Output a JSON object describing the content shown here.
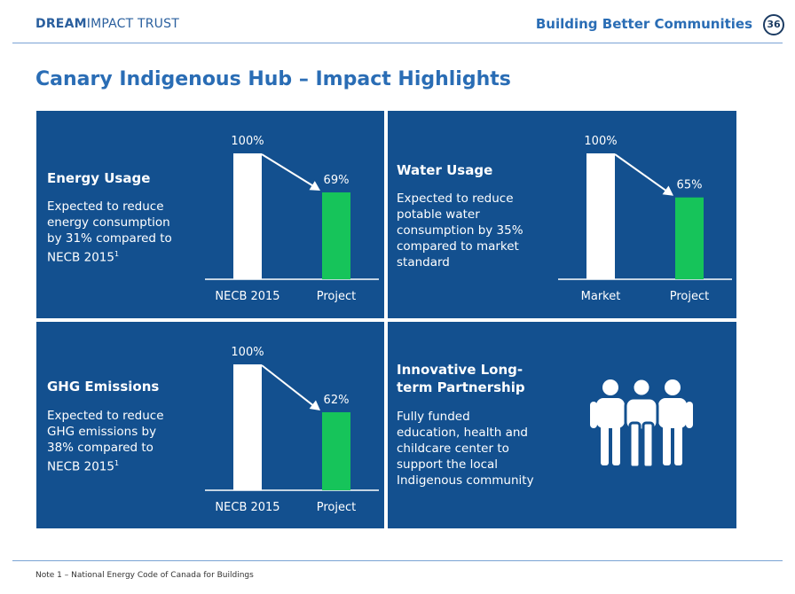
{
  "header": {
    "logo_bold": "DREAM",
    "logo_light": "IMPACT TRUST",
    "section": "Building Better Communities",
    "page_number": "36"
  },
  "title": "Canary Indigenous Hub – Impact Highlights",
  "panels": {
    "energy": {
      "title": "Energy Usage",
      "description_lines": [
        "Expected to reduce",
        "energy consumption",
        "by 31% compared to",
        "NECB 2015"
      ],
      "footnote_mark": "1"
    },
    "water": {
      "title": "Water Usage",
      "description_lines": [
        "Expected to reduce",
        "potable water",
        "consumption by 35%",
        "compared to market",
        "standard"
      ]
    },
    "ghg": {
      "title": "GHG Emissions",
      "description_lines": [
        "Expected to reduce",
        "GHG emissions by",
        "38% compared to",
        "NECB 2015"
      ],
      "footnote_mark": "1"
    },
    "partnership": {
      "title_lines": [
        "Innovative Long-",
        "term Partnership"
      ],
      "description_lines": [
        "Fully funded",
        "education, health and",
        "childcare center to",
        "support the local",
        "Indigenous community"
      ],
      "icon": "people-group-icon"
    }
  },
  "colors": {
    "panel": "#13508f",
    "baseline_bar": "#ffffff",
    "project_bar": "#16c45a",
    "accent": "#2a6db5"
  },
  "chart_data": [
    {
      "type": "bar",
      "title": "Energy Usage",
      "categories": [
        "NECB 2015",
        "Project"
      ],
      "values": [
        100,
        69
      ],
      "value_labels": [
        "100%",
        "69%"
      ],
      "ylim": [
        0,
        100
      ]
    },
    {
      "type": "bar",
      "title": "Water Usage",
      "categories": [
        "Market",
        "Project"
      ],
      "values": [
        100,
        65
      ],
      "value_labels": [
        "100%",
        "65%"
      ],
      "ylim": [
        0,
        100
      ]
    },
    {
      "type": "bar",
      "title": "GHG Emissions",
      "categories": [
        "NECB 2015",
        "Project"
      ],
      "values": [
        100,
        62
      ],
      "value_labels": [
        "100%",
        "62%"
      ],
      "ylim": [
        0,
        100
      ]
    }
  ],
  "footnote": "Note 1 – National Energy Code of Canada for Buildings"
}
